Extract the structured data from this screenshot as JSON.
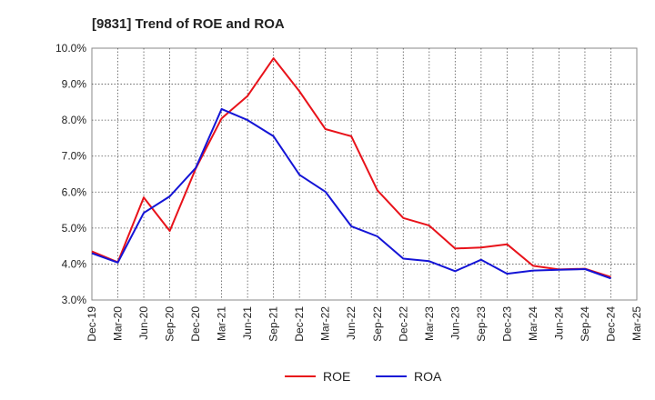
{
  "chart_data": {
    "type": "line",
    "title": "[9831]  Trend of ROE and ROA",
    "xlabel": "",
    "ylabel": "",
    "x": [
      "Dec-19",
      "Mar-20",
      "Jun-20",
      "Sep-20",
      "Dec-20",
      "Mar-21",
      "Jun-21",
      "Sep-21",
      "Dec-21",
      "Mar-22",
      "Jun-22",
      "Sep-22",
      "Dec-22",
      "Mar-23",
      "Jun-23",
      "Sep-23",
      "Dec-23",
      "Mar-24",
      "Jun-24",
      "Sep-24",
      "Dec-24",
      "Mar-25"
    ],
    "ylim": [
      3.0,
      10.0
    ],
    "yticks": [
      "3.0%",
      "4.0%",
      "5.0%",
      "6.0%",
      "7.0%",
      "8.0%",
      "9.0%",
      "10.0%"
    ],
    "grid": true,
    "legend_placement": "bottom-center",
    "series": [
      {
        "name": "ROE",
        "color": "#e8121a",
        "values": [
          4.35,
          4.05,
          5.85,
          4.92,
          6.65,
          8.05,
          8.67,
          9.72,
          8.8,
          7.75,
          7.55,
          6.05,
          5.28,
          5.07,
          4.43,
          4.46,
          4.55,
          3.95,
          3.85,
          3.87,
          3.64,
          null
        ]
      },
      {
        "name": "ROA",
        "color": "#1414d6",
        "values": [
          4.3,
          4.04,
          5.42,
          5.88,
          6.67,
          8.31,
          8.0,
          7.55,
          6.48,
          6.01,
          5.05,
          4.77,
          4.15,
          4.08,
          3.8,
          4.12,
          3.73,
          3.82,
          3.84,
          3.86,
          3.6,
          null
        ]
      }
    ]
  }
}
